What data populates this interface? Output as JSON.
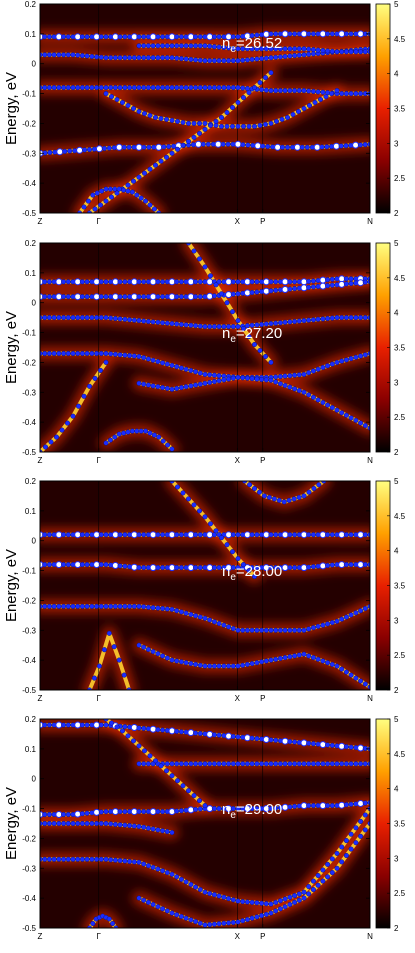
{
  "chart_data": [
    {
      "type": "heatmap",
      "annotation": {
        "prefix": "n",
        "subscript": "e",
        "value": "=26.52"
      },
      "ylabel": "Energy, eV",
      "ylim": [
        -0.5,
        0.2
      ],
      "yticks": [
        "0.2",
        "0.1",
        "0",
        "-0.1",
        "-0.2",
        "-0.3",
        "-0.4",
        "-0.5"
      ],
      "kpoints": [
        "Z",
        "Γ",
        "X",
        "P",
        "N"
      ],
      "colorbar": {
        "range": [
          2,
          5
        ],
        "ticks": [
          "5",
          "4.5",
          "4",
          "3.5",
          "3",
          "2.5",
          "2"
        ]
      },
      "grid": false,
      "legend": "none",
      "bands": [
        {
          "x": [
            0.0,
            0.12,
            0.24,
            0.36,
            0.48,
            0.6,
            0.72,
            0.84,
            1.0
          ],
          "y": [
            -0.3,
            -0.29,
            -0.28,
            -0.28,
            -0.27,
            -0.27,
            -0.28,
            -0.28,
            -0.27
          ]
        },
        {
          "x": [
            0.0,
            0.1,
            0.2,
            0.3,
            0.4,
            0.5,
            0.6,
            0.7,
            0.8,
            0.9,
            1.0
          ],
          "y": [
            0.09,
            0.09,
            0.09,
            0.09,
            0.09,
            0.09,
            0.09,
            0.1,
            0.1,
            0.1,
            0.1
          ]
        },
        {
          "x": [
            0.0,
            0.1,
            0.2,
            0.3,
            0.4,
            0.5,
            0.6,
            0.7,
            0.8,
            0.9,
            1.0
          ],
          "y": [
            0.03,
            0.03,
            0.02,
            0.02,
            0.02,
            0.01,
            0.01,
            0.02,
            0.03,
            0.04,
            0.05
          ]
        },
        {
          "x": [
            0.0,
            0.1,
            0.2,
            0.3,
            0.4,
            0.5,
            0.6,
            0.7,
            0.8,
            0.9,
            1.0
          ],
          "y": [
            -0.08,
            -0.08,
            -0.08,
            -0.08,
            -0.08,
            -0.08,
            -0.08,
            -0.09,
            -0.09,
            -0.1,
            -0.1
          ]
        },
        {
          "x": [
            0.3,
            0.4,
            0.5,
            0.6,
            0.7,
            0.8,
            0.9,
            1.0
          ],
          "y": [
            0.06,
            0.06,
            0.06,
            0.05,
            0.05,
            0.05,
            0.04,
            0.04
          ]
        },
        {
          "x": [
            0.2,
            0.25,
            0.3,
            0.35,
            0.4,
            0.45,
            0.5,
            0.55,
            0.6,
            0.65,
            0.7,
            0.75,
            0.8,
            0.85,
            0.9
          ],
          "y": [
            -0.1,
            -0.13,
            -0.16,
            -0.18,
            -0.19,
            -0.2,
            -0.2,
            -0.21,
            -0.21,
            -0.21,
            -0.2,
            -0.18,
            -0.15,
            -0.12,
            -0.09
          ]
        },
        {
          "x": [
            0.15,
            0.2,
            0.25,
            0.3,
            0.35,
            0.4,
            0.45,
            0.5,
            0.55,
            0.6,
            0.65,
            0.7
          ],
          "y": [
            -0.5,
            -0.46,
            -0.42,
            -0.38,
            -0.34,
            -0.3,
            -0.26,
            -0.22,
            -0.18,
            -0.13,
            -0.08,
            -0.03
          ]
        },
        {
          "x": [
            0.12,
            0.16,
            0.2,
            0.24,
            0.28,
            0.32,
            0.36
          ],
          "y": [
            -0.5,
            -0.44,
            -0.42,
            -0.42,
            -0.43,
            -0.46,
            -0.5
          ]
        }
      ]
    },
    {
      "type": "heatmap",
      "annotation": {
        "prefix": "n",
        "subscript": "e",
        "value": "=27.20"
      },
      "ylabel": "Energy, eV",
      "ylim": [
        -0.5,
        0.2
      ],
      "yticks": [
        "0.2",
        "0.1",
        "0",
        "-0.1",
        "-0.2",
        "-0.3",
        "-0.4",
        "-0.5"
      ],
      "kpoints": [
        "Z",
        "Γ",
        "X",
        "P",
        "N"
      ],
      "colorbar": {
        "range": [
          2,
          5
        ],
        "ticks": [
          "5",
          "4.5",
          "4",
          "3.5",
          "3",
          "2.5",
          "2"
        ]
      },
      "grid": false,
      "legend": "none",
      "bands": [
        {
          "x": [
            0.0,
            0.1,
            0.2,
            0.3,
            0.4,
            0.5,
            0.6,
            0.7,
            0.8,
            0.9,
            1.0
          ],
          "y": [
            0.07,
            0.07,
            0.07,
            0.07,
            0.07,
            0.07,
            0.07,
            0.07,
            0.07,
            0.08,
            0.08
          ]
        },
        {
          "x": [
            0.0,
            0.1,
            0.2,
            0.3,
            0.4,
            0.5,
            0.6,
            0.7,
            0.8,
            0.9,
            1.0
          ],
          "y": [
            0.02,
            0.02,
            0.02,
            0.02,
            0.02,
            0.02,
            0.03,
            0.04,
            0.05,
            0.06,
            0.07
          ]
        },
        {
          "x": [
            0.0,
            0.1,
            0.2,
            0.3,
            0.4,
            0.5,
            0.6,
            0.7,
            0.8,
            0.9,
            1.0
          ],
          "y": [
            -0.05,
            -0.05,
            -0.05,
            -0.06,
            -0.07,
            -0.08,
            -0.08,
            -0.07,
            -0.06,
            -0.05,
            -0.05
          ]
        },
        {
          "x": [
            0.0,
            0.1,
            0.2,
            0.3,
            0.4,
            0.5,
            0.6,
            0.7,
            0.8,
            0.9,
            1.0
          ],
          "y": [
            -0.17,
            -0.17,
            -0.17,
            -0.18,
            -0.21,
            -0.24,
            -0.25,
            -0.25,
            -0.24,
            -0.2,
            -0.17
          ]
        },
        {
          "x": [
            0.3,
            0.4,
            0.5,
            0.6,
            0.7,
            0.8,
            0.9,
            1.0
          ],
          "y": [
            -0.27,
            -0.29,
            -0.27,
            -0.25,
            -0.26,
            -0.3,
            -0.36,
            -0.42
          ]
        },
        {
          "x": [
            0.0,
            0.05,
            0.1,
            0.15,
            0.2
          ],
          "y": [
            -0.5,
            -0.45,
            -0.38,
            -0.28,
            -0.2
          ]
        },
        {
          "x": [
            0.2,
            0.24,
            0.28,
            0.32,
            0.36,
            0.4
          ],
          "y": [
            -0.47,
            -0.44,
            -0.43,
            -0.43,
            -0.45,
            -0.49
          ]
        },
        {
          "x": [
            0.45,
            0.5,
            0.55,
            0.6,
            0.65,
            0.7
          ],
          "y": [
            0.2,
            0.12,
            0.03,
            -0.06,
            -0.14,
            -0.2
          ]
        }
      ]
    },
    {
      "type": "heatmap",
      "annotation": {
        "prefix": "n",
        "subscript": "e",
        "value": "=28.00"
      },
      "ylabel": "Energy, eV",
      "ylim": [
        -0.5,
        0.2
      ],
      "yticks": [
        "0.2",
        "0.1",
        "0",
        "-0.1",
        "-0.2",
        "-0.3",
        "-0.4",
        "-0.5"
      ],
      "kpoints": [
        "Z",
        "Γ",
        "X",
        "P",
        "N"
      ],
      "colorbar": {
        "range": [
          2,
          5
        ],
        "ticks": [
          "5",
          "4.5",
          "4",
          "3.5",
          "3",
          "2.5",
          "2"
        ]
      },
      "grid": false,
      "legend": "none",
      "bands": [
        {
          "x": [
            0.0,
            0.1,
            0.2,
            0.3,
            0.4,
            0.5,
            0.6,
            0.7,
            0.8,
            0.9,
            1.0
          ],
          "y": [
            0.02,
            0.02,
            0.02,
            0.02,
            0.02,
            0.02,
            0.02,
            0.02,
            0.02,
            0.02,
            0.02
          ]
        },
        {
          "x": [
            0.0,
            0.1,
            0.2,
            0.3,
            0.4,
            0.5,
            0.6,
            0.7,
            0.8,
            0.9,
            1.0
          ],
          "y": [
            -0.08,
            -0.08,
            -0.08,
            -0.09,
            -0.09,
            -0.09,
            -0.09,
            -0.09,
            -0.09,
            -0.08,
            -0.08
          ]
        },
        {
          "x": [
            0.0,
            0.1,
            0.2,
            0.3,
            0.4,
            0.5,
            0.6,
            0.7,
            0.8,
            0.9,
            1.0
          ],
          "y": [
            -0.22,
            -0.22,
            -0.22,
            -0.22,
            -0.23,
            -0.26,
            -0.3,
            -0.3,
            -0.3,
            -0.27,
            -0.22
          ]
        },
        {
          "x": [
            0.3,
            0.4,
            0.5,
            0.6,
            0.7,
            0.8,
            0.9,
            1.0
          ],
          "y": [
            -0.35,
            -0.4,
            -0.42,
            -0.42,
            -0.4,
            -0.38,
            -0.42,
            -0.49
          ]
        },
        {
          "x": [
            0.15,
            0.18,
            0.21,
            0.24,
            0.27
          ],
          "y": [
            -0.5,
            -0.42,
            -0.31,
            -0.4,
            -0.5
          ]
        },
        {
          "x": [
            0.4,
            0.45,
            0.5,
            0.55,
            0.6,
            0.65
          ],
          "y": [
            0.2,
            0.14,
            0.08,
            0.01,
            -0.06,
            -0.12
          ]
        },
        {
          "x": [
            0.62,
            0.68,
            0.74,
            0.8,
            0.86
          ],
          "y": [
            0.2,
            0.15,
            0.13,
            0.15,
            0.2
          ]
        }
      ]
    },
    {
      "type": "heatmap",
      "annotation": {
        "prefix": "n",
        "subscript": "e",
        "value": "=29.00"
      },
      "ylabel": "Energy, eV",
      "ylim": [
        -0.5,
        0.2
      ],
      "yticks": [
        "0.2",
        "0.1",
        "0",
        "-0.1",
        "-0.2",
        "-0.3",
        "-0.4",
        "-0.5"
      ],
      "kpoints": [
        "Z",
        "Γ",
        "X",
        "P",
        "N"
      ],
      "colorbar": {
        "range": [
          2,
          5
        ],
        "ticks": [
          "5",
          "4.5",
          "4",
          "3.5",
          "3",
          "2.5",
          "2"
        ]
      },
      "grid": false,
      "legend": "none",
      "bands": [
        {
          "x": [
            0.0,
            0.1,
            0.2,
            0.3,
            0.4,
            0.5,
            0.6,
            0.7,
            0.8,
            0.9,
            1.0
          ],
          "y": [
            0.18,
            0.18,
            0.18,
            0.17,
            0.16,
            0.15,
            0.14,
            0.13,
            0.12,
            0.11,
            0.1
          ]
        },
        {
          "x": [
            0.0,
            0.1,
            0.2,
            0.3,
            0.4,
            0.5,
            0.6,
            0.7,
            0.8,
            0.9,
            1.0
          ],
          "y": [
            -0.12,
            -0.12,
            -0.11,
            -0.11,
            -0.11,
            -0.1,
            -0.1,
            -0.1,
            -0.09,
            -0.09,
            -0.08
          ]
        },
        {
          "x": [
            0.3,
            0.4,
            0.5,
            0.6,
            0.7,
            0.8,
            0.9,
            1.0
          ],
          "y": [
            0.05,
            0.05,
            0.05,
            0.05,
            0.05,
            0.05,
            0.05,
            0.05
          ]
        },
        {
          "x": [
            0.0,
            0.1,
            0.2,
            0.3,
            0.4,
            0.5,
            0.6,
            0.7,
            0.8,
            0.9,
            1.0
          ],
          "y": [
            -0.27,
            -0.27,
            -0.27,
            -0.28,
            -0.32,
            -0.38,
            -0.41,
            -0.42,
            -0.38,
            -0.25,
            -0.1
          ]
        },
        {
          "x": [
            0.3,
            0.4,
            0.5,
            0.6,
            0.7,
            0.8,
            0.9,
            1.0
          ],
          "y": [
            -0.4,
            -0.45,
            -0.49,
            -0.48,
            -0.45,
            -0.4,
            -0.3,
            -0.15
          ]
        },
        {
          "x": [
            0.15,
            0.17,
            0.19,
            0.21,
            0.23
          ],
          "y": [
            -0.5,
            -0.47,
            -0.46,
            -0.47,
            -0.5
          ]
        },
        {
          "x": [
            0.2,
            0.25,
            0.3,
            0.35,
            0.4,
            0.45,
            0.5
          ],
          "y": [
            0.2,
            0.16,
            0.11,
            0.06,
            0.01,
            -0.04,
            -0.09
          ]
        },
        {
          "x": [
            0.0,
            0.1,
            0.2,
            0.3,
            0.4
          ],
          "y": [
            -0.15,
            -0.15,
            -0.15,
            -0.16,
            -0.18
          ]
        }
      ]
    }
  ]
}
